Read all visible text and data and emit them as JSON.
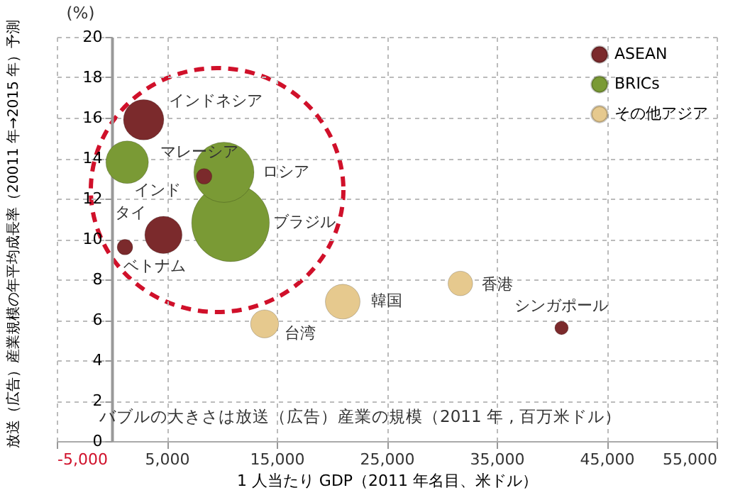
{
  "chart_data": {
    "type": "bubble",
    "xlabel": "1 人当たり GDP（2011 年名目、米ドル）",
    "ylabel": "放送（広告）産業規模の年平均成長率（20011 年→2015 年）予測",
    "xlim": [
      -5000,
      55000
    ],
    "xticks": [
      {
        "value": -5000,
        "label": "-5,000"
      },
      {
        "value": 5000,
        "label": "5,000"
      },
      {
        "value": 15000,
        "label": "15,000"
      },
      {
        "value": 25000,
        "label": "25,000"
      },
      {
        "value": 35000,
        "label": "35,000"
      },
      {
        "value": 45000,
        "label": "45,000"
      },
      {
        "value": 55000,
        "label": "55,000"
      }
    ],
    "ylim": [
      0,
      20
    ],
    "yticks": [
      0,
      2,
      4,
      6,
      8,
      10,
      12,
      14,
      16,
      18,
      20
    ],
    "grid": true,
    "legend": "top right",
    "marker": "circle",
    "series": [
      {
        "name": "ASEAN",
        "color": "#7b2a2c",
        "x": [
          2900,
          8400,
          4700,
          1200,
          40900
        ],
        "values": [
          15.9,
          13.1,
          10.2,
          9.6,
          5.6
        ],
        "sizes": [
          0.27,
          0.04,
          0.23,
          0.04,
          0.03
        ]
      },
      {
        "name": "BRICs",
        "color": "#7a9a35",
        "x": [
          1400,
          10200,
          10800
        ],
        "values": [
          13.8,
          13.3,
          10.8
        ],
        "sizes": [
          0.3,
          0.6,
          1
        ]
      },
      {
        "name": "その他アジア",
        "color": "#e6c98e",
        "x": [
          13900,
          21000,
          31700
        ],
        "values": [
          5.8,
          6.9,
          7.8
        ],
        "sizes": [
          0.13,
          0.2,
          0.1
        ]
      }
    ],
    "annotations": [
      {
        "text": "インドネシア",
        "x": 2900,
        "y": 15.9
      },
      {
        "text": "マレーシア",
        "x": 8400,
        "y": 13.1
      },
      {
        "text": "タイ",
        "x": 4700,
        "y": 10.2
      },
      {
        "text": "ベトナム",
        "x": 1200,
        "y": 9.6
      },
      {
        "text": "シンガポール",
        "x": 40900,
        "y": 5.6
      },
      {
        "text": "インド",
        "x": 1400,
        "y": 13.8
      },
      {
        "text": "ロシア",
        "x": 10200,
        "y": 13.3
      },
      {
        "text": "ブラジル",
        "x": 10800,
        "y": 10.8
      },
      {
        "text": "台湾",
        "x": 13900,
        "y": 5.8
      },
      {
        "text": "韓国",
        "x": 21000,
        "y": 6.9
      },
      {
        "text": "香港",
        "x": 31700,
        "y": 7.8
      },
      "(%)",
      "バブルの大きさは放送（広告）産業の規模（2011 年 , 百万米ドル）"
    ]
  }
}
